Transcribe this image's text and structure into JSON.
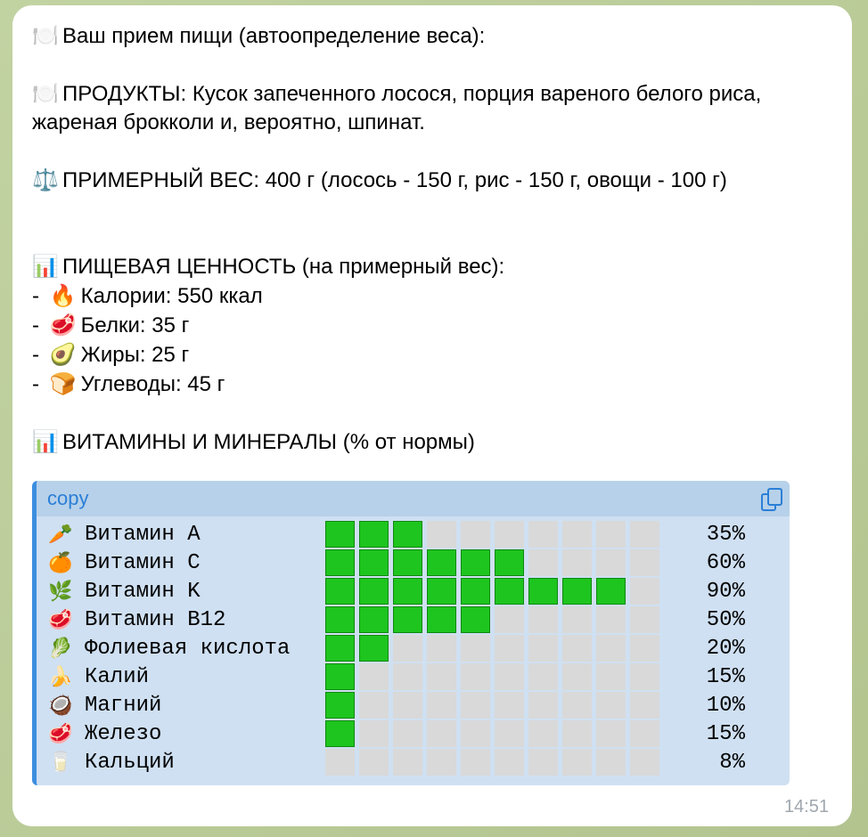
{
  "message": {
    "header": "Ваш прием пищи (автоопределение веса):",
    "products_line": "ПРОДУКТЫ: Кусок запеченного лосося, порция вареного белого риса, жареная брокколи и, вероятно, шпинат.",
    "weight_line": "ПРИМЕРНЫЙ ВЕС: 400 г (лосось - 150 г, рис - 150 г, овощи - 100 г)",
    "nutrition_title": "ПИЩЕВАЯ ЦЕННОСТЬ (на примерный вес):",
    "nutrients": [
      {
        "icon": "fire-icon",
        "glyph": "🔥",
        "text": "Калории: 550 ккал"
      },
      {
        "icon": "meat-icon",
        "glyph": "🥩",
        "text": "Белки: 35 г"
      },
      {
        "icon": "avocado-icon",
        "glyph": "🥑",
        "text": "Жиры: 25 г"
      },
      {
        "icon": "bread-icon",
        "glyph": "🍞",
        "text": "Углеводы: 45 г"
      }
    ],
    "vitamins_title": "ВИТАМИНЫ И МИНЕРАЛЫ (% от нормы)",
    "time": "14:51"
  },
  "icons": {
    "plate": "🍽️",
    "scales": "⚖️",
    "chart": "📊",
    "list_dash": "- "
  },
  "code_block": {
    "language": "copy",
    "rows": [
      {
        "icon": "carrot-icon",
        "glyph": "🥕",
        "name": "Витамин A",
        "percent_label": "35%",
        "filled": 3
      },
      {
        "icon": "orange-icon",
        "glyph": "🍊",
        "name": "Витамин C",
        "percent_label": "60%",
        "filled": 6
      },
      {
        "icon": "herb-icon",
        "glyph": "🌿",
        "name": "Витамин K",
        "percent_label": "90%",
        "filled": 9
      },
      {
        "icon": "meat-icon",
        "glyph": "🥩",
        "name": "Витамин B12",
        "percent_label": "50%",
        "filled": 5
      },
      {
        "icon": "leafy-green-icon",
        "glyph": "🥬",
        "name": "Фолиевая кислота",
        "percent_label": "20%",
        "filled": 2
      },
      {
        "icon": "banana-icon",
        "glyph": "🍌",
        "name": "Калий",
        "percent_label": "15%",
        "filled": 1
      },
      {
        "icon": "coconut-icon",
        "glyph": "🥥",
        "name": "Магний",
        "percent_label": "10%",
        "filled": 1
      },
      {
        "icon": "meat-icon",
        "glyph": "🥩",
        "name": "Железо",
        "percent_label": "15%",
        "filled": 1
      },
      {
        "icon": "milk-icon",
        "glyph": "🥛",
        "name": "Кальций",
        "percent_label": "8%",
        "filled": 0
      }
    ],
    "total_cells": 10
  },
  "colors": {
    "bar_filled": "#1ec51e",
    "bar_empty": "#d9d9d9",
    "code_bg": "#cfe0f2",
    "code_header_bg": "#b7d1ea",
    "accent": "#2b7fd6"
  }
}
